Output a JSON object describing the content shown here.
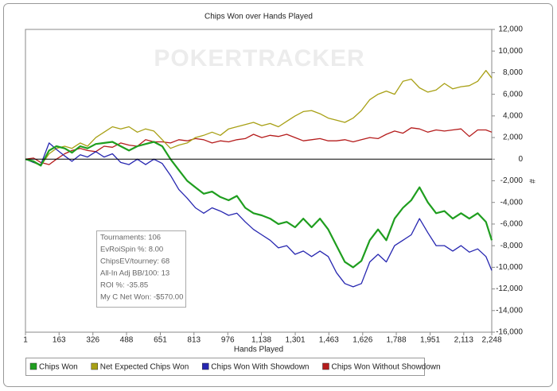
{
  "chart_data": {
    "type": "line",
    "title": "Chips Won over Hands Played",
    "watermark": "POKERTRACKER",
    "x_label": "Hands Played",
    "y_label": "#",
    "x": [
      1,
      40,
      75,
      115,
      150,
      190,
      225,
      265,
      300,
      340,
      380,
      420,
      460,
      500,
      540,
      580,
      620,
      660,
      700,
      740,
      780,
      820,
      860,
      900,
      940,
      980,
      1020,
      1060,
      1100,
      1140,
      1180,
      1220,
      1260,
      1300,
      1340,
      1380,
      1420,
      1460,
      1500,
      1540,
      1580,
      1620,
      1660,
      1700,
      1740,
      1780,
      1820,
      1860,
      1900,
      1940,
      1980,
      2020,
      2060,
      2100,
      2140,
      2180,
      2220,
      2248
    ],
    "series": [
      {
        "name": "Chips Won",
        "color": "#1f9e1f",
        "values": [
          0,
          -200,
          -600,
          800,
          1200,
          1000,
          600,
          1200,
          1000,
          1400,
          1500,
          1600,
          1200,
          800,
          1200,
          1400,
          1600,
          1200,
          0,
          -1000,
          -2000,
          -2600,
          -3200,
          -3000,
          -3500,
          -3800,
          -3400,
          -4500,
          -5000,
          -5200,
          -5500,
          -6000,
          -5800,
          -6300,
          -5500,
          -6300,
          -5500,
          -6500,
          -8000,
          -9500,
          -10000,
          -9400,
          -7500,
          -6500,
          -7500,
          -5500,
          -4500,
          -3800,
          -2600,
          -4000,
          -5000,
          -4800,
          -5500,
          -5000,
          -5500,
          -5000,
          -5800,
          -7500
        ]
      },
      {
        "name": "Net Expected Chips Won",
        "color": "#a8a015",
        "values": [
          0,
          -300,
          -600,
          500,
          1000,
          1200,
          1000,
          1500,
          1200,
          2000,
          2500,
          3000,
          2800,
          3000,
          2500,
          2800,
          2600,
          1800,
          1000,
          1300,
          1500,
          2000,
          2200,
          2500,
          2200,
          2800,
          3000,
          3200,
          3400,
          3100,
          3300,
          3000,
          3500,
          4000,
          4400,
          4500,
          4200,
          3800,
          3600,
          3400,
          3800,
          4500,
          5500,
          6000,
          6300,
          6000,
          7200,
          7400,
          6600,
          6200,
          6400,
          7000,
          6500,
          6700,
          6800,
          7200,
          8200,
          7500
        ]
      },
      {
        "name": "Chips Won With Showdown",
        "color": "#2626b0",
        "values": [
          0,
          -300,
          -500,
          1500,
          900,
          300,
          -200,
          400,
          200,
          700,
          200,
          500,
          -300,
          -500,
          0,
          -500,
          0,
          -400,
          -1500,
          -2800,
          -3600,
          -4500,
          -5000,
          -4500,
          -4800,
          -5200,
          -5000,
          -5800,
          -6500,
          -7000,
          -7500,
          -8200,
          -8000,
          -8800,
          -8500,
          -9000,
          -8500,
          -9000,
          -10500,
          -11500,
          -11800,
          -11500,
          -9500,
          -8800,
          -9500,
          -8000,
          -7500,
          -7000,
          -5500,
          -6800,
          -8000,
          -8000,
          -8500,
          -8000,
          -8600,
          -8300,
          -9000,
          -10300
        ]
      },
      {
        "name": "Chips Won Without Showdown",
        "color": "#b51c1c",
        "values": [
          0,
          100,
          -300,
          -500,
          0,
          500,
          800,
          1000,
          800,
          700,
          1200,
          1100,
          1500,
          1300,
          1200,
          1800,
          1600,
          1600,
          1500,
          1800,
          1700,
          1900,
          1800,
          1500,
          1700,
          1600,
          1800,
          1900,
          2300,
          2000,
          2200,
          2100,
          2300,
          2000,
          1700,
          1800,
          1900,
          1700,
          1700,
          1800,
          1600,
          1800,
          2000,
          1900,
          2300,
          2600,
          2400,
          2900,
          2800,
          2500,
          2700,
          2600,
          2700,
          2800,
          2100,
          2700,
          2700,
          2500
        ]
      }
    ],
    "xlim": [
      1,
      2248
    ],
    "xticks": [
      1,
      163,
      326,
      488,
      651,
      813,
      976,
      {
        "value": 1138,
        "label": "1,138"
      },
      {
        "value": 1301,
        "label": "1,301"
      },
      {
        "value": 1463,
        "label": "1,463"
      },
      {
        "value": 1626,
        "label": "1,626"
      },
      {
        "value": 1788,
        "label": "1,788"
      },
      {
        "value": 1951,
        "label": "1,951"
      },
      {
        "value": 2113,
        "label": "2,113"
      },
      {
        "value": 2248,
        "label": "2,248"
      }
    ],
    "ylim": [
      -16000,
      12000
    ],
    "yticks": [
      {
        "value": 12000,
        "label": "12,000"
      },
      {
        "value": 10000,
        "label": "10,000"
      },
      {
        "value": 8000,
        "label": "8,000"
      },
      {
        "value": 6000,
        "label": "6,000"
      },
      {
        "value": 4000,
        "label": "4,000"
      },
      {
        "value": 2000,
        "label": "2,000"
      },
      0,
      {
        "value": -2000,
        "label": "-2,000"
      },
      {
        "value": -4000,
        "label": "-4,000"
      },
      {
        "value": -6000,
        "label": "-6,000"
      },
      {
        "value": -8000,
        "label": "-8,000"
      },
      {
        "value": -10000,
        "label": "-10,000"
      },
      {
        "value": -12000,
        "label": "-12,000"
      },
      {
        "value": -14000,
        "label": "-14,000"
      },
      {
        "value": -16000,
        "label": "-16,000"
      }
    ],
    "info_box": [
      "Tournaments: 106",
      "EvRoiSpin %: 8.00",
      "ChipsEV/tourney: 68",
      "All-In Adj BB/100: 13",
      "ROI %: -35.85",
      "My C Net Won: -$570.00"
    ],
    "legend_position": "bottom"
  }
}
